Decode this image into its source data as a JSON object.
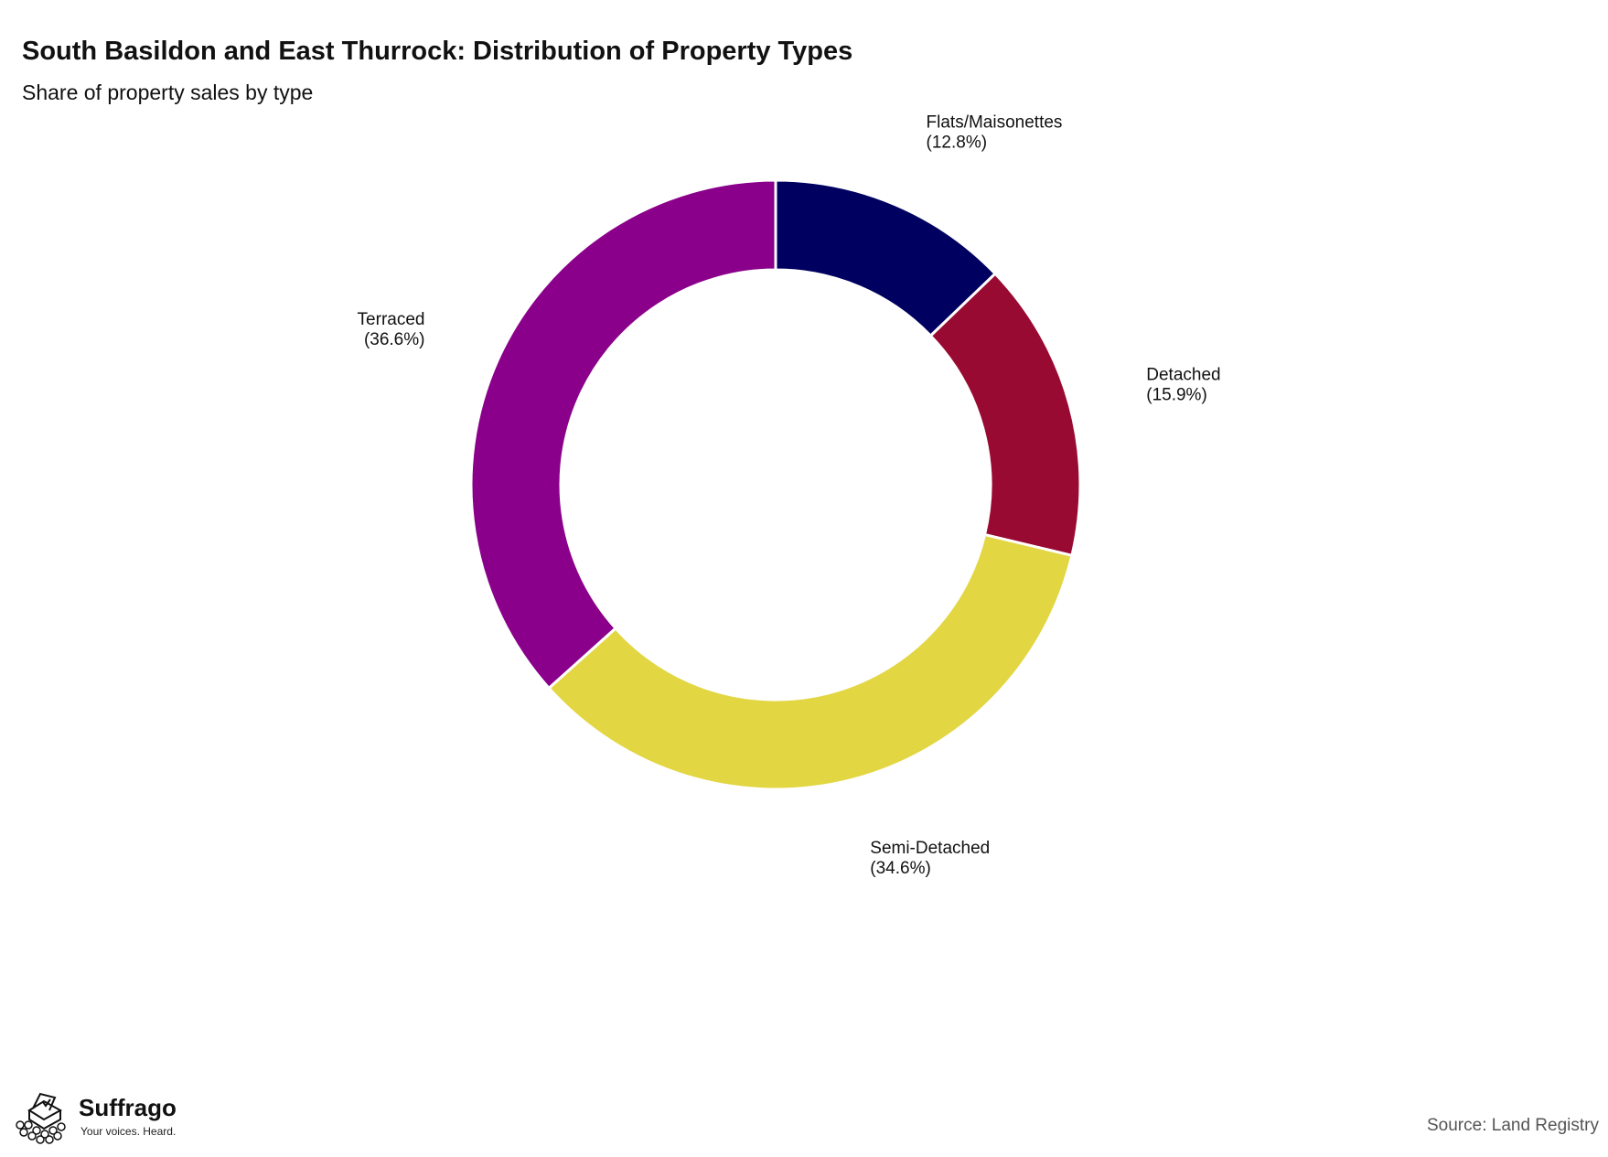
{
  "header": {
    "title": "South Basildon and East Thurrock: Distribution of Property Types",
    "subtitle": "Share of property sales by type"
  },
  "footer": {
    "source": "Source: Land Registry",
    "brand_name": "Suffrago",
    "brand_tagline": "Your voices. Heard."
  },
  "chart_data": {
    "type": "pie",
    "donut": true,
    "title": "South Basildon and East Thurrock: Distribution of Property Types",
    "subtitle": "Share of property sales by type",
    "unit": "%",
    "slices": [
      {
        "label": "Flats/Maisonettes",
        "value": 12.8,
        "value_label": "(12.8%)",
        "color": "#000060"
      },
      {
        "label": "Detached",
        "value": 15.9,
        "value_label": "(15.9%)",
        "color": "#990a32"
      },
      {
        "label": "Semi-Detached",
        "value": 34.6,
        "value_label": "(34.6%)",
        "color": "#e3d643"
      },
      {
        "label": "Terraced",
        "value": 36.6,
        "value_label": "(36.6%)",
        "color": "#8a008a"
      }
    ]
  }
}
